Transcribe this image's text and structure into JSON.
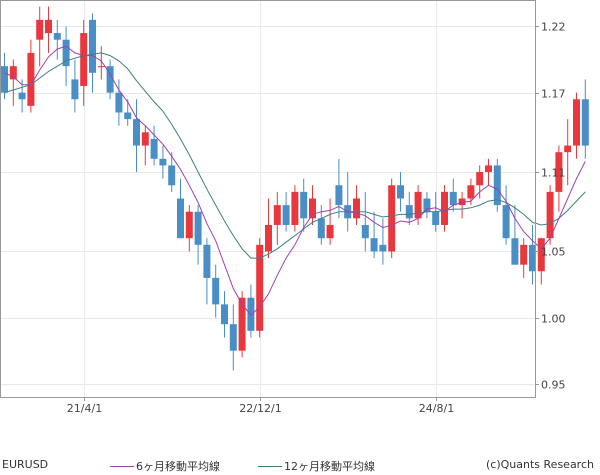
{
  "chart_data": {
    "type": "candlestick",
    "symbol": "EURUSD",
    "credit": "(c)Quants Research",
    "y_ticks": [
      "1.22",
      "1.17",
      "1.11",
      "1.05",
      "1.00",
      "0.95"
    ],
    "y_tick_values": [
      1.22,
      1.17,
      1.11,
      1.05,
      1.0,
      0.95
    ],
    "ylim": [
      0.94,
      1.24
    ],
    "x_ticks": [
      "21/4/1",
      "22/12/1",
      "24/8/1"
    ],
    "x_tick_indices": [
      9,
      29,
      49
    ],
    "grid": true,
    "colors": {
      "up": "#e8383d",
      "down": "#4a8ec6",
      "ma6": "#a040b0",
      "ma12": "#3c7f80",
      "grid": "#e8e8e8"
    },
    "series": [
      {
        "name": "candles",
        "ohlc": [
          [
            1.19,
            1.2,
            1.165,
            1.17
          ],
          [
            1.18,
            1.195,
            1.16,
            1.19
          ],
          [
            1.17,
            1.18,
            1.155,
            1.165
          ],
          [
            1.16,
            1.21,
            1.155,
            1.2
          ],
          [
            1.21,
            1.235,
            1.19,
            1.225
          ],
          [
            1.215,
            1.235,
            1.2,
            1.225
          ],
          [
            1.215,
            1.225,
            1.195,
            1.21
          ],
          [
            1.21,
            1.22,
            1.175,
            1.19
          ],
          [
            1.18,
            1.195,
            1.155,
            1.165
          ],
          [
            1.175,
            1.225,
            1.16,
            1.215
          ],
          [
            1.225,
            1.23,
            1.17,
            1.185
          ],
          [
            1.19,
            1.205,
            1.18,
            1.19
          ],
          [
            1.19,
            1.195,
            1.165,
            1.17
          ],
          [
            1.17,
            1.18,
            1.145,
            1.155
          ],
          [
            1.155,
            1.165,
            1.145,
            1.15
          ],
          [
            1.15,
            1.165,
            1.11,
            1.13
          ],
          [
            1.13,
            1.145,
            1.115,
            1.14
          ],
          [
            1.135,
            1.145,
            1.115,
            1.12
          ],
          [
            1.12,
            1.13,
            1.105,
            1.115
          ],
          [
            1.115,
            1.125,
            1.095,
            1.1
          ],
          [
            1.09,
            1.105,
            1.06,
            1.06
          ],
          [
            1.06,
            1.085,
            1.05,
            1.08
          ],
          [
            1.08,
            1.085,
            1.04,
            1.055
          ],
          [
            1.055,
            1.06,
            1.01,
            1.03
          ],
          [
            1.03,
            1.04,
            1.0,
            1.01
          ],
          [
            1.01,
            1.02,
            0.985,
            0.995
          ],
          [
            0.995,
            1.01,
            0.96,
            0.975
          ],
          [
            0.975,
            1.02,
            0.97,
            1.015
          ],
          [
            1.015,
            1.025,
            0.985,
            0.99
          ],
          [
            0.99,
            1.06,
            0.985,
            1.055
          ],
          [
            1.05,
            1.09,
            1.045,
            1.07
          ],
          [
            1.07,
            1.095,
            1.055,
            1.085
          ],
          [
            1.085,
            1.095,
            1.065,
            1.07
          ],
          [
            1.07,
            1.1,
            1.065,
            1.095
          ],
          [
            1.095,
            1.105,
            1.065,
            1.075
          ],
          [
            1.075,
            1.1,
            1.07,
            1.09
          ],
          [
            1.075,
            1.085,
            1.055,
            1.06
          ],
          [
            1.06,
            1.09,
            1.055,
            1.07
          ],
          [
            1.1,
            1.12,
            1.075,
            1.085
          ],
          [
            1.085,
            1.11,
            1.065,
            1.075
          ],
          [
            1.075,
            1.1,
            1.07,
            1.09
          ],
          [
            1.07,
            1.095,
            1.05,
            1.06
          ],
          [
            1.06,
            1.08,
            1.045,
            1.05
          ],
          [
            1.055,
            1.075,
            1.04,
            1.05
          ],
          [
            1.05,
            1.105,
            1.045,
            1.1
          ],
          [
            1.1,
            1.11,
            1.08,
            1.09
          ],
          [
            1.085,
            1.095,
            1.07,
            1.075
          ],
          [
            1.075,
            1.1,
            1.07,
            1.095
          ],
          [
            1.09,
            1.095,
            1.075,
            1.08
          ],
          [
            1.08,
            1.095,
            1.065,
            1.07
          ],
          [
            1.07,
            1.1,
            1.065,
            1.095
          ],
          [
            1.095,
            1.105,
            1.08,
            1.085
          ],
          [
            1.085,
            1.095,
            1.075,
            1.09
          ],
          [
            1.09,
            1.105,
            1.085,
            1.1
          ],
          [
            1.1,
            1.115,
            1.09,
            1.11
          ],
          [
            1.11,
            1.12,
            1.1,
            1.115
          ],
          [
            1.115,
            1.12,
            1.08,
            1.085
          ],
          [
            1.085,
            1.1,
            1.055,
            1.06
          ],
          [
            1.06,
            1.085,
            1.04,
            1.04
          ],
          [
            1.04,
            1.06,
            1.03,
            1.055
          ],
          [
            1.055,
            1.07,
            1.025,
            1.035
          ],
          [
            1.035,
            1.06,
            1.025,
            1.06
          ],
          [
            1.06,
            1.1,
            1.055,
            1.095
          ],
          [
            1.095,
            1.13,
            1.08,
            1.125
          ],
          [
            1.125,
            1.15,
            1.1,
            1.13
          ],
          [
            1.13,
            1.17,
            1.12,
            1.165
          ],
          [
            1.165,
            1.18,
            1.12,
            1.13
          ]
        ]
      },
      {
        "name": "6ヶ月移動平均線",
        "values": [
          1.185,
          1.182,
          1.176,
          1.176,
          1.187,
          1.197,
          1.203,
          1.205,
          1.2,
          1.198,
          1.198,
          1.194,
          1.184,
          1.172,
          1.163,
          1.151,
          1.145,
          1.138,
          1.131,
          1.122,
          1.112,
          1.1,
          1.087,
          1.071,
          1.058,
          1.04,
          1.022,
          1.01,
          1.002,
          1.008,
          1.018,
          1.032,
          1.045,
          1.055,
          1.068,
          1.078,
          1.08,
          1.081,
          1.084,
          1.08,
          1.079,
          1.077,
          1.072,
          1.068,
          1.07,
          1.073,
          1.072,
          1.075,
          1.082,
          1.083,
          1.08,
          1.085,
          1.087,
          1.088,
          1.095,
          1.1,
          1.097,
          1.088,
          1.075,
          1.065,
          1.058,
          1.052,
          1.06,
          1.075,
          1.09,
          1.105,
          1.118
        ]
      },
      {
        "name": "12ヶ月移動平均線",
        "values": [
          1.17,
          1.172,
          1.174,
          1.176,
          1.181,
          1.186,
          1.19,
          1.194,
          1.196,
          1.198,
          1.199,
          1.2,
          1.198,
          1.194,
          1.188,
          1.179,
          1.171,
          1.163,
          1.156,
          1.146,
          1.135,
          1.123,
          1.11,
          1.097,
          1.085,
          1.073,
          1.062,
          1.052,
          1.045,
          1.045,
          1.048,
          1.052,
          1.057,
          1.062,
          1.067,
          1.072,
          1.075,
          1.078,
          1.08,
          1.08,
          1.08,
          1.08,
          1.078,
          1.076,
          1.077,
          1.078,
          1.078,
          1.079,
          1.08,
          1.08,
          1.081,
          1.082,
          1.082,
          1.083,
          1.085,
          1.088,
          1.089,
          1.087,
          1.083,
          1.078,
          1.072,
          1.07,
          1.071,
          1.075,
          1.081,
          1.088,
          1.095
        ]
      }
    ]
  }
}
